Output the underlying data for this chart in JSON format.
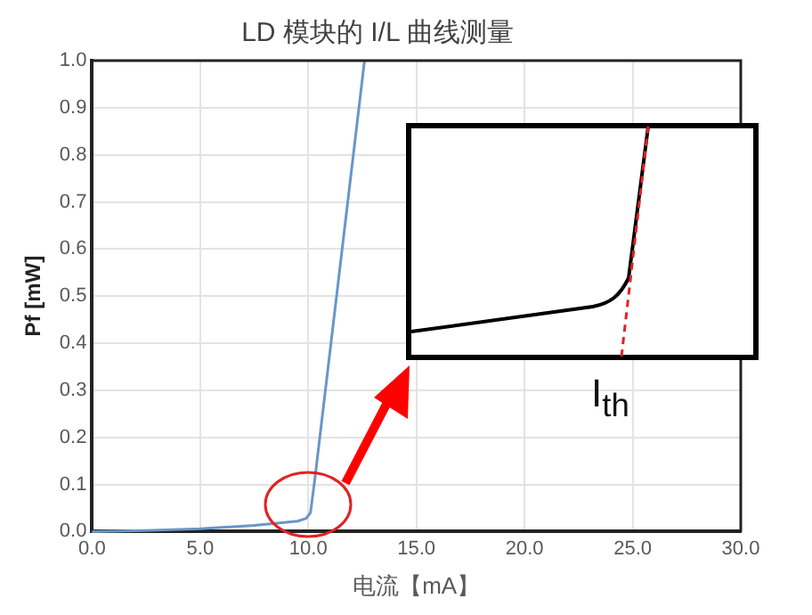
{
  "chart_data": {
    "type": "line",
    "title": "LD 模块的 I/L 曲线测量",
    "xlabel": "电流【mA】",
    "ylabel": "Pf [mW]",
    "x": [
      0,
      2.5,
      5,
      7.5,
      9.5,
      9.9,
      10.1,
      10.3,
      12.6
    ],
    "series": [
      {
        "color": "#6a96c8",
        "values": [
          0,
          0.002,
          0.006,
          0.013,
          0.022,
          0.028,
          0.04,
          0.11,
          1.0
        ]
      }
    ],
    "xlim": [
      0,
      30
    ],
    "xticks": [
      {
        "value": 0,
        "label": "0.0"
      },
      {
        "value": 5,
        "label": "5.0"
      },
      {
        "value": 10,
        "label": "10.0"
      },
      {
        "value": 15,
        "label": "15.0"
      },
      {
        "value": 20,
        "label": "20.0"
      },
      {
        "value": 25,
        "label": "25.0"
      },
      {
        "value": 30,
        "label": "30.0"
      }
    ],
    "ylim": [
      0,
      1
    ],
    "yticks": [
      {
        "value": 0,
        "label": "0.0"
      },
      {
        "value": 0.1,
        "label": "0.1"
      },
      {
        "value": 0.2,
        "label": "0.2"
      },
      {
        "value": 0.3,
        "label": "0.3"
      },
      {
        "value": 0.4,
        "label": "0.4"
      },
      {
        "value": 0.5,
        "label": "0.5"
      },
      {
        "value": 0.6,
        "label": "0.6"
      },
      {
        "value": 0.7,
        "label": "0.7"
      },
      {
        "value": 0.8,
        "label": "0.8"
      },
      {
        "value": 0.9,
        "label": "0.9"
      },
      {
        "value": 1,
        "label": "1.0"
      }
    ],
    "grid": true,
    "marker": "none",
    "line_style": "solid",
    "annotations": [
      "I$_{th}$"
    ]
  }
}
